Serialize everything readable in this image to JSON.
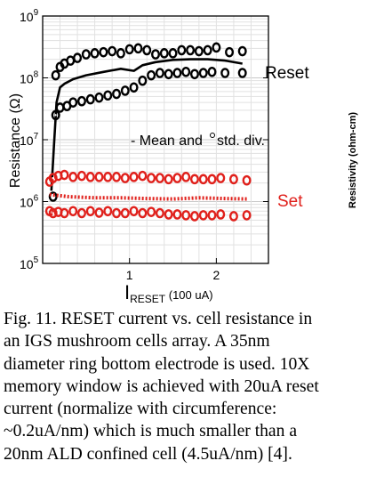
{
  "chart_data": {
    "type": "scatter",
    "xlabel": "I",
    "xlabel_sub": "RESET",
    "xlabel_unit": "(100 uA)",
    "ylabel": "Resistance (Ω)",
    "right_ylabel": "Resistivity (ohm-cm)",
    "xlim": [
      0,
      2.6
    ],
    "ylim": [
      100000,
      1000000000
    ],
    "yscale": "log",
    "grid": true,
    "x_ticks": [
      {
        "v": 0,
        "label": ""
      },
      {
        "v": 1,
        "label": "1"
      },
      {
        "v": 2,
        "label": "2"
      }
    ],
    "y_ticks": [
      {
        "exp": 5,
        "label": "10",
        "sup": "5"
      },
      {
        "exp": 6,
        "label": "10",
        "sup": "6"
      },
      {
        "exp": 7,
        "label": "10",
        "sup": "7"
      },
      {
        "exp": 8,
        "label": "10",
        "sup": "8"
      },
      {
        "exp": 9,
        "label": "10",
        "sup": "9"
      }
    ],
    "annotations": [
      {
        "text": "Reset",
        "color": "#000000"
      },
      {
        "text": "- Mean and",
        "color": "#000000"
      },
      {
        "text": "std. div.",
        "color": "#000000"
      },
      {
        "text": "Set",
        "color": "#e0201b"
      }
    ],
    "series": [
      {
        "role": "reset-mean",
        "style": "line",
        "color": "#000000",
        "x": [
          0.1,
          0.13,
          0.16,
          0.2,
          0.25,
          0.35,
          0.5,
          0.7,
          0.9,
          1.05,
          1.15,
          1.3,
          1.5,
          1.7,
          1.9,
          2.1,
          2.3
        ],
        "y": [
          1500000,
          8000000,
          40000000,
          70000000,
          80000000,
          95000000,
          110000000,
          125000000,
          140000000,
          130000000,
          160000000,
          180000000,
          195000000,
          200000000,
          200000000,
          190000000,
          170000000
        ]
      },
      {
        "role": "reset-upper",
        "style": "markers",
        "color": "#000000",
        "x": [
          0.15,
          0.2,
          0.25,
          0.32,
          0.4,
          0.5,
          0.6,
          0.7,
          0.8,
          0.9,
          1.0,
          1.1,
          1.2,
          1.3,
          1.4,
          1.5,
          1.6,
          1.7,
          1.8,
          1.9,
          2.0,
          2.15,
          2.3
        ],
        "y": [
          110000000,
          150000000,
          170000000,
          190000000,
          210000000,
          240000000,
          250000000,
          260000000,
          270000000,
          250000000,
          290000000,
          300000000,
          280000000,
          240000000,
          250000000,
          250000000,
          280000000,
          280000000,
          270000000,
          280000000,
          310000000,
          260000000,
          270000000
        ]
      },
      {
        "role": "reset-lower",
        "style": "markers",
        "color": "#000000",
        "x": [
          0.12,
          0.15,
          0.2,
          0.28,
          0.35,
          0.45,
          0.55,
          0.65,
          0.75,
          0.85,
          0.95,
          1.05,
          1.15,
          1.25,
          1.35,
          1.45,
          1.55,
          1.65,
          1.75,
          1.85,
          1.95,
          2.1,
          2.3
        ],
        "y": [
          1200000,
          25000000,
          33000000,
          35000000,
          40000000,
          42000000,
          45000000,
          48000000,
          52000000,
          55000000,
          62000000,
          70000000,
          90000000,
          110000000,
          120000000,
          115000000,
          120000000,
          125000000,
          115000000,
          120000000,
          125000000,
          120000000,
          120000000
        ]
      },
      {
        "role": "set-upper",
        "style": "markers",
        "color": "#e0201b",
        "x": [
          0.08,
          0.12,
          0.18,
          0.25,
          0.35,
          0.45,
          0.55,
          0.65,
          0.75,
          0.85,
          0.95,
          1.05,
          1.15,
          1.25,
          1.35,
          1.45,
          1.55,
          1.65,
          1.75,
          1.85,
          1.95,
          2.05,
          2.2,
          2.35
        ],
        "y": [
          2100000,
          2400000,
          2600000,
          2700000,
          2500000,
          2600000,
          2500000,
          2500000,
          2500000,
          2500000,
          2400000,
          2500000,
          2600000,
          2400000,
          2400000,
          2300000,
          2400000,
          2500000,
          2300000,
          2300000,
          2300000,
          2400000,
          2300000,
          2200000
        ]
      },
      {
        "role": "set-mean",
        "style": "dotted",
        "color": "#e0201b",
        "x": [
          0.08,
          0.3,
          0.6,
          0.9,
          1.2,
          1.5,
          1.8,
          2.1,
          2.35
        ],
        "y": [
          1300000,
          1200000,
          1150000,
          1150000,
          1120000,
          1100000,
          1150000,
          1120000,
          1100000
        ]
      },
      {
        "role": "set-lower",
        "style": "markers",
        "color": "#e0201b",
        "x": [
          0.08,
          0.12,
          0.18,
          0.25,
          0.35,
          0.45,
          0.55,
          0.65,
          0.75,
          0.85,
          0.95,
          1.05,
          1.15,
          1.25,
          1.35,
          1.45,
          1.55,
          1.65,
          1.75,
          1.85,
          1.95,
          2.05,
          2.2,
          2.35
        ],
        "y": [
          700000,
          650000,
          680000,
          650000,
          700000,
          650000,
          700000,
          660000,
          700000,
          650000,
          650000,
          700000,
          650000,
          680000,
          650000,
          620000,
          620000,
          600000,
          580000,
          600000,
          600000,
          620000,
          580000,
          600000
        ]
      }
    ]
  },
  "caption": {
    "lines": [
      "Fig. 11. RESET current vs. cell resistance in",
      "an IGS  mushroom cells array. A 35nm",
      "diameter ring bottom electrode is used. 10X",
      "memory window is achieved with 20uA reset",
      "current (normalize with circumference:",
      "~0.2uA/nm) which is much smaller than a",
      "20nm ALD confined cell (4.5uA/nm) [4]."
    ]
  }
}
